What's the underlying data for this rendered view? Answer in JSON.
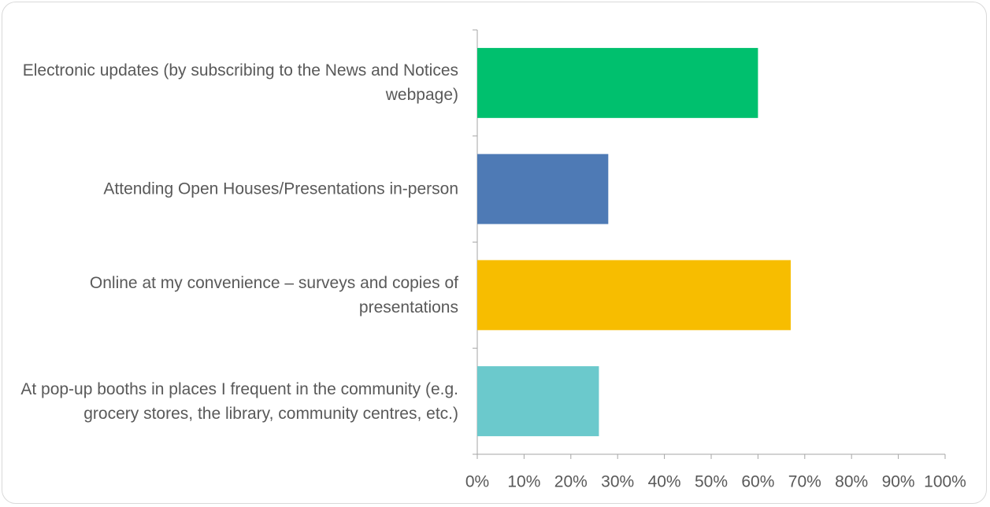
{
  "chart_data": {
    "type": "bar",
    "orientation": "horizontal",
    "categories": [
      "Electronic updates (by subscribing to the News and Notices webpage)",
      "Attending Open Houses/Presentations in-person",
      "Online at my convenience – surveys and copies of presentations",
      "At pop-up booths in places I frequent in the community (e.g. grocery stores, the library, community centres, etc.)"
    ],
    "values": [
      60,
      28,
      67,
      26
    ],
    "colors": [
      "#00c06e",
      "#4e7ab5",
      "#f7bd00",
      "#6bc9cc"
    ],
    "xlim": [
      0,
      100
    ],
    "xticks": [
      {
        "value": 0,
        "label": "0%"
      },
      {
        "value": 10,
        "label": "10%"
      },
      {
        "value": 20,
        "label": "20%"
      },
      {
        "value": 30,
        "label": "30%"
      },
      {
        "value": 40,
        "label": "40%"
      },
      {
        "value": 50,
        "label": "50%"
      },
      {
        "value": 60,
        "label": "60%"
      },
      {
        "value": 70,
        "label": "70%"
      },
      {
        "value": 80,
        "label": "80%"
      },
      {
        "value": 90,
        "label": "90%"
      },
      {
        "value": 100,
        "label": "100%"
      }
    ],
    "grid": false
  }
}
